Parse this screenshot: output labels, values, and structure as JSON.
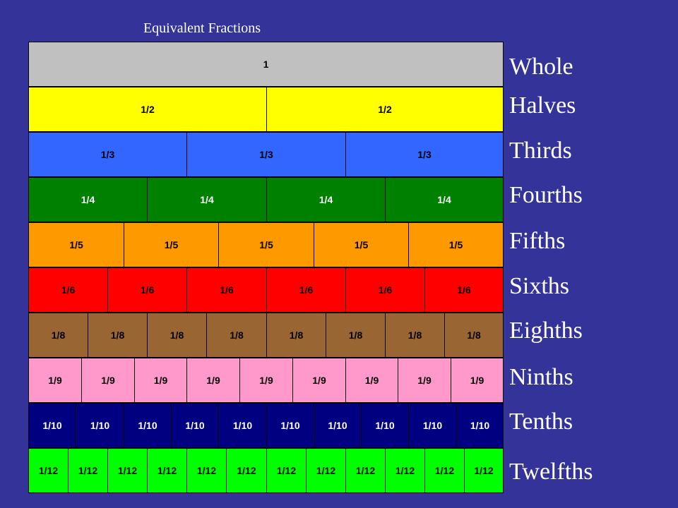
{
  "title": "Equivalent Fractions",
  "rows": [
    {
      "label": "Whole",
      "denominator": 1,
      "cell_text": "1",
      "fill": "#c0c0c0",
      "text_color": "#000000"
    },
    {
      "label": "Halves",
      "denominator": 2,
      "cell_text": "1/2",
      "fill": "#ffff00",
      "text_color": "#000000"
    },
    {
      "label": "Thirds",
      "denominator": 3,
      "cell_text": "1/3",
      "fill": "#3366ff",
      "text_color": "#000000"
    },
    {
      "label": "Fourths",
      "denominator": 4,
      "cell_text": "1/4",
      "fill": "#008000",
      "text_color": "#ffffff"
    },
    {
      "label": "Fifths",
      "denominator": 5,
      "cell_text": "1/5",
      "fill": "#ff9900",
      "text_color": "#000000"
    },
    {
      "label": "Sixths",
      "denominator": 6,
      "cell_text": "1/6",
      "fill": "#ff0000",
      "text_color": "#000000"
    },
    {
      "label": "Eighths",
      "denominator": 8,
      "cell_text": "1/8",
      "fill": "#996633",
      "text_color": "#000000"
    },
    {
      "label": "Ninths",
      "denominator": 9,
      "cell_text": "1/9",
      "fill": "#ff99cc",
      "text_color": "#000000"
    },
    {
      "label": "Tenths",
      "denominator": 10,
      "cell_text": "1/10",
      "fill": "#000080",
      "text_color": "#ffffff"
    },
    {
      "label": "Twelfths",
      "denominator": 12,
      "cell_text": "1/12",
      "fill": "#00ff00",
      "text_color": "#000000"
    }
  ]
}
